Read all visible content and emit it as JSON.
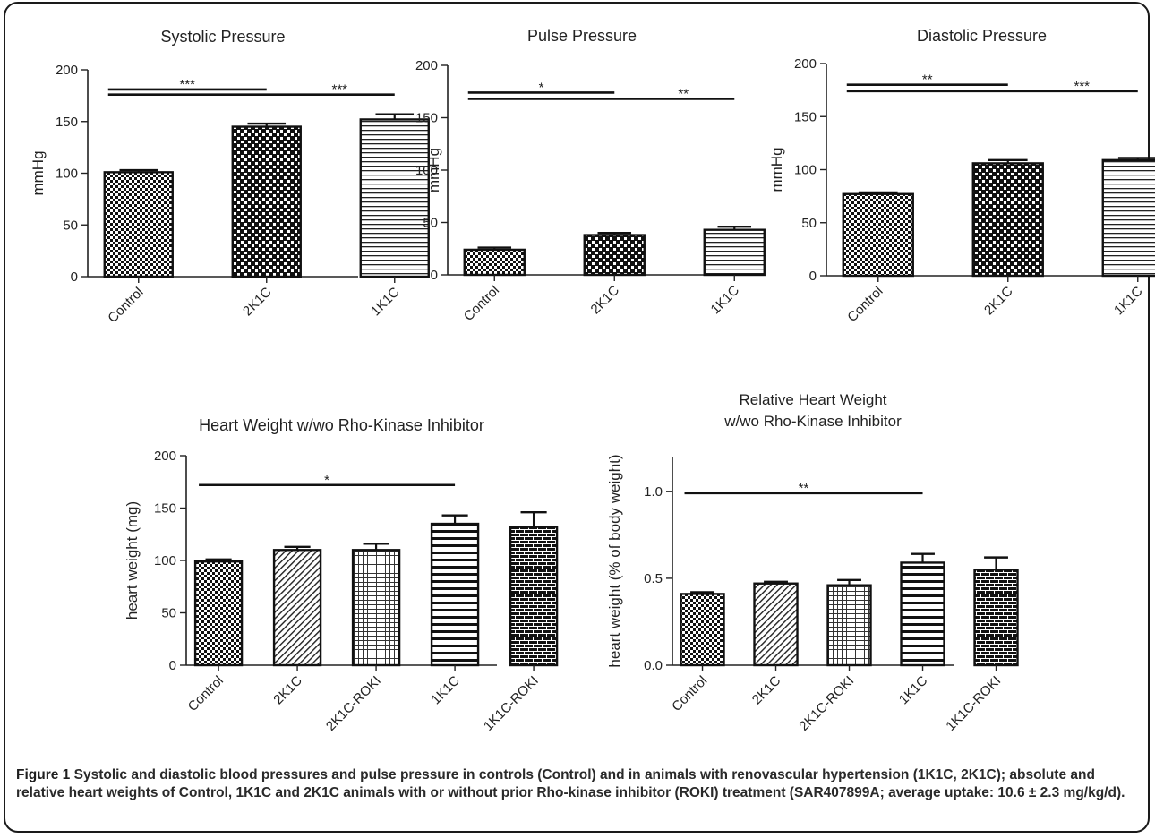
{
  "chart_data": [
    {
      "type": "bar",
      "title": "Systolic Pressure",
      "ylabel": "mmHg",
      "ylim": [
        0,
        200
      ],
      "yticks": [
        0,
        50,
        100,
        150,
        200
      ],
      "categories": [
        "Control",
        "2K1C",
        "1K1C"
      ],
      "values": [
        101,
        145,
        152
      ],
      "errors": [
        2,
        3,
        5
      ],
      "patterns": [
        "checker-small",
        "checker-large",
        "hlines"
      ],
      "significance": [
        {
          "from": 0,
          "to": 1,
          "label": "***",
          "y": 181
        },
        {
          "from": 0,
          "to": 2,
          "label": "***",
          "y": 176
        }
      ]
    },
    {
      "type": "bar",
      "title": "Pulse Pressure",
      "ylabel": "mmHg",
      "ylim": [
        0,
        200
      ],
      "yticks": [
        0,
        50,
        100,
        150,
        200
      ],
      "categories": [
        "Control",
        "2K1C",
        "1K1C"
      ],
      "values": [
        24,
        38,
        43
      ],
      "errors": [
        2,
        2,
        3
      ],
      "patterns": [
        "checker-small",
        "checker-large",
        "hlines"
      ],
      "significance": [
        {
          "from": 0,
          "to": 1,
          "label": "*",
          "y": 174
        },
        {
          "from": 0,
          "to": 2,
          "label": "**",
          "y": 168
        }
      ]
    },
    {
      "type": "bar",
      "title": "Diastolic Pressure",
      "ylabel": "mmHg",
      "ylim": [
        0,
        200
      ],
      "yticks": [
        0,
        50,
        100,
        150,
        200
      ],
      "categories": [
        "Control",
        "2K1C",
        "1K1C"
      ],
      "values": [
        77,
        106,
        109
      ],
      "errors": [
        1.5,
        3,
        2
      ],
      "patterns": [
        "checker-small",
        "checker-large",
        "hlines"
      ],
      "significance": [
        {
          "from": 0,
          "to": 1,
          "label": "**",
          "y": 180
        },
        {
          "from": 0,
          "to": 2,
          "label": "***",
          "y": 174
        }
      ]
    },
    {
      "type": "bar",
      "title": "Heart Weight w/wo Rho-Kinase Inhibitor",
      "ylabel": "heart weight (mg)",
      "ylim": [
        0,
        200
      ],
      "yticks": [
        0,
        50,
        100,
        150,
        200
      ],
      "categories": [
        "Control",
        "2K1C",
        "2K1C-ROKI",
        "1K1C",
        "1K1C-ROKI"
      ],
      "values": [
        99,
        110,
        110,
        135,
        132
      ],
      "errors": [
        2,
        3,
        6,
        8,
        14
      ],
      "patterns": [
        "checker-small",
        "diag",
        "grid",
        "hlines-thick",
        "brick"
      ],
      "significance": [
        {
          "from": 0,
          "to": 3,
          "label": "*",
          "y": 172
        }
      ]
    },
    {
      "type": "bar",
      "title": "Relative Heart Weight\nw/wo Rho-Kinase Inhibitor",
      "ylabel": "heart weight (% of body weight)",
      "ylim": [
        0,
        1.2
      ],
      "yticks": [
        0.0,
        0.5,
        1.0
      ],
      "yticklabels": [
        "0.0",
        "0.5",
        "1.0"
      ],
      "categories": [
        "Control",
        "2K1C",
        "2K1C-ROKI",
        "1K1C",
        "1K1C-ROKI"
      ],
      "values": [
        0.41,
        0.47,
        0.46,
        0.59,
        0.55
      ],
      "errors": [
        0.01,
        0.01,
        0.03,
        0.05,
        0.07
      ],
      "patterns": [
        "checker-small",
        "diag",
        "grid",
        "hlines-thick",
        "brick"
      ],
      "significance": [
        {
          "from": 0,
          "to": 3,
          "label": "**",
          "y": 0.99
        }
      ]
    }
  ],
  "caption": {
    "label": "Figure 1",
    "text": "Systolic and diastolic blood pressures and pulse pressure in controls (Control) and in animals with renovascular hypertension (1K1C, 2K1C); absolute and relative heart weights of Control, 1K1C and 2K1C animals with or without prior Rho-kinase inhibitor (ROKI) treatment (SAR407899A; average uptake: 10.6 ± 2.3 mg/kg/d)."
  }
}
